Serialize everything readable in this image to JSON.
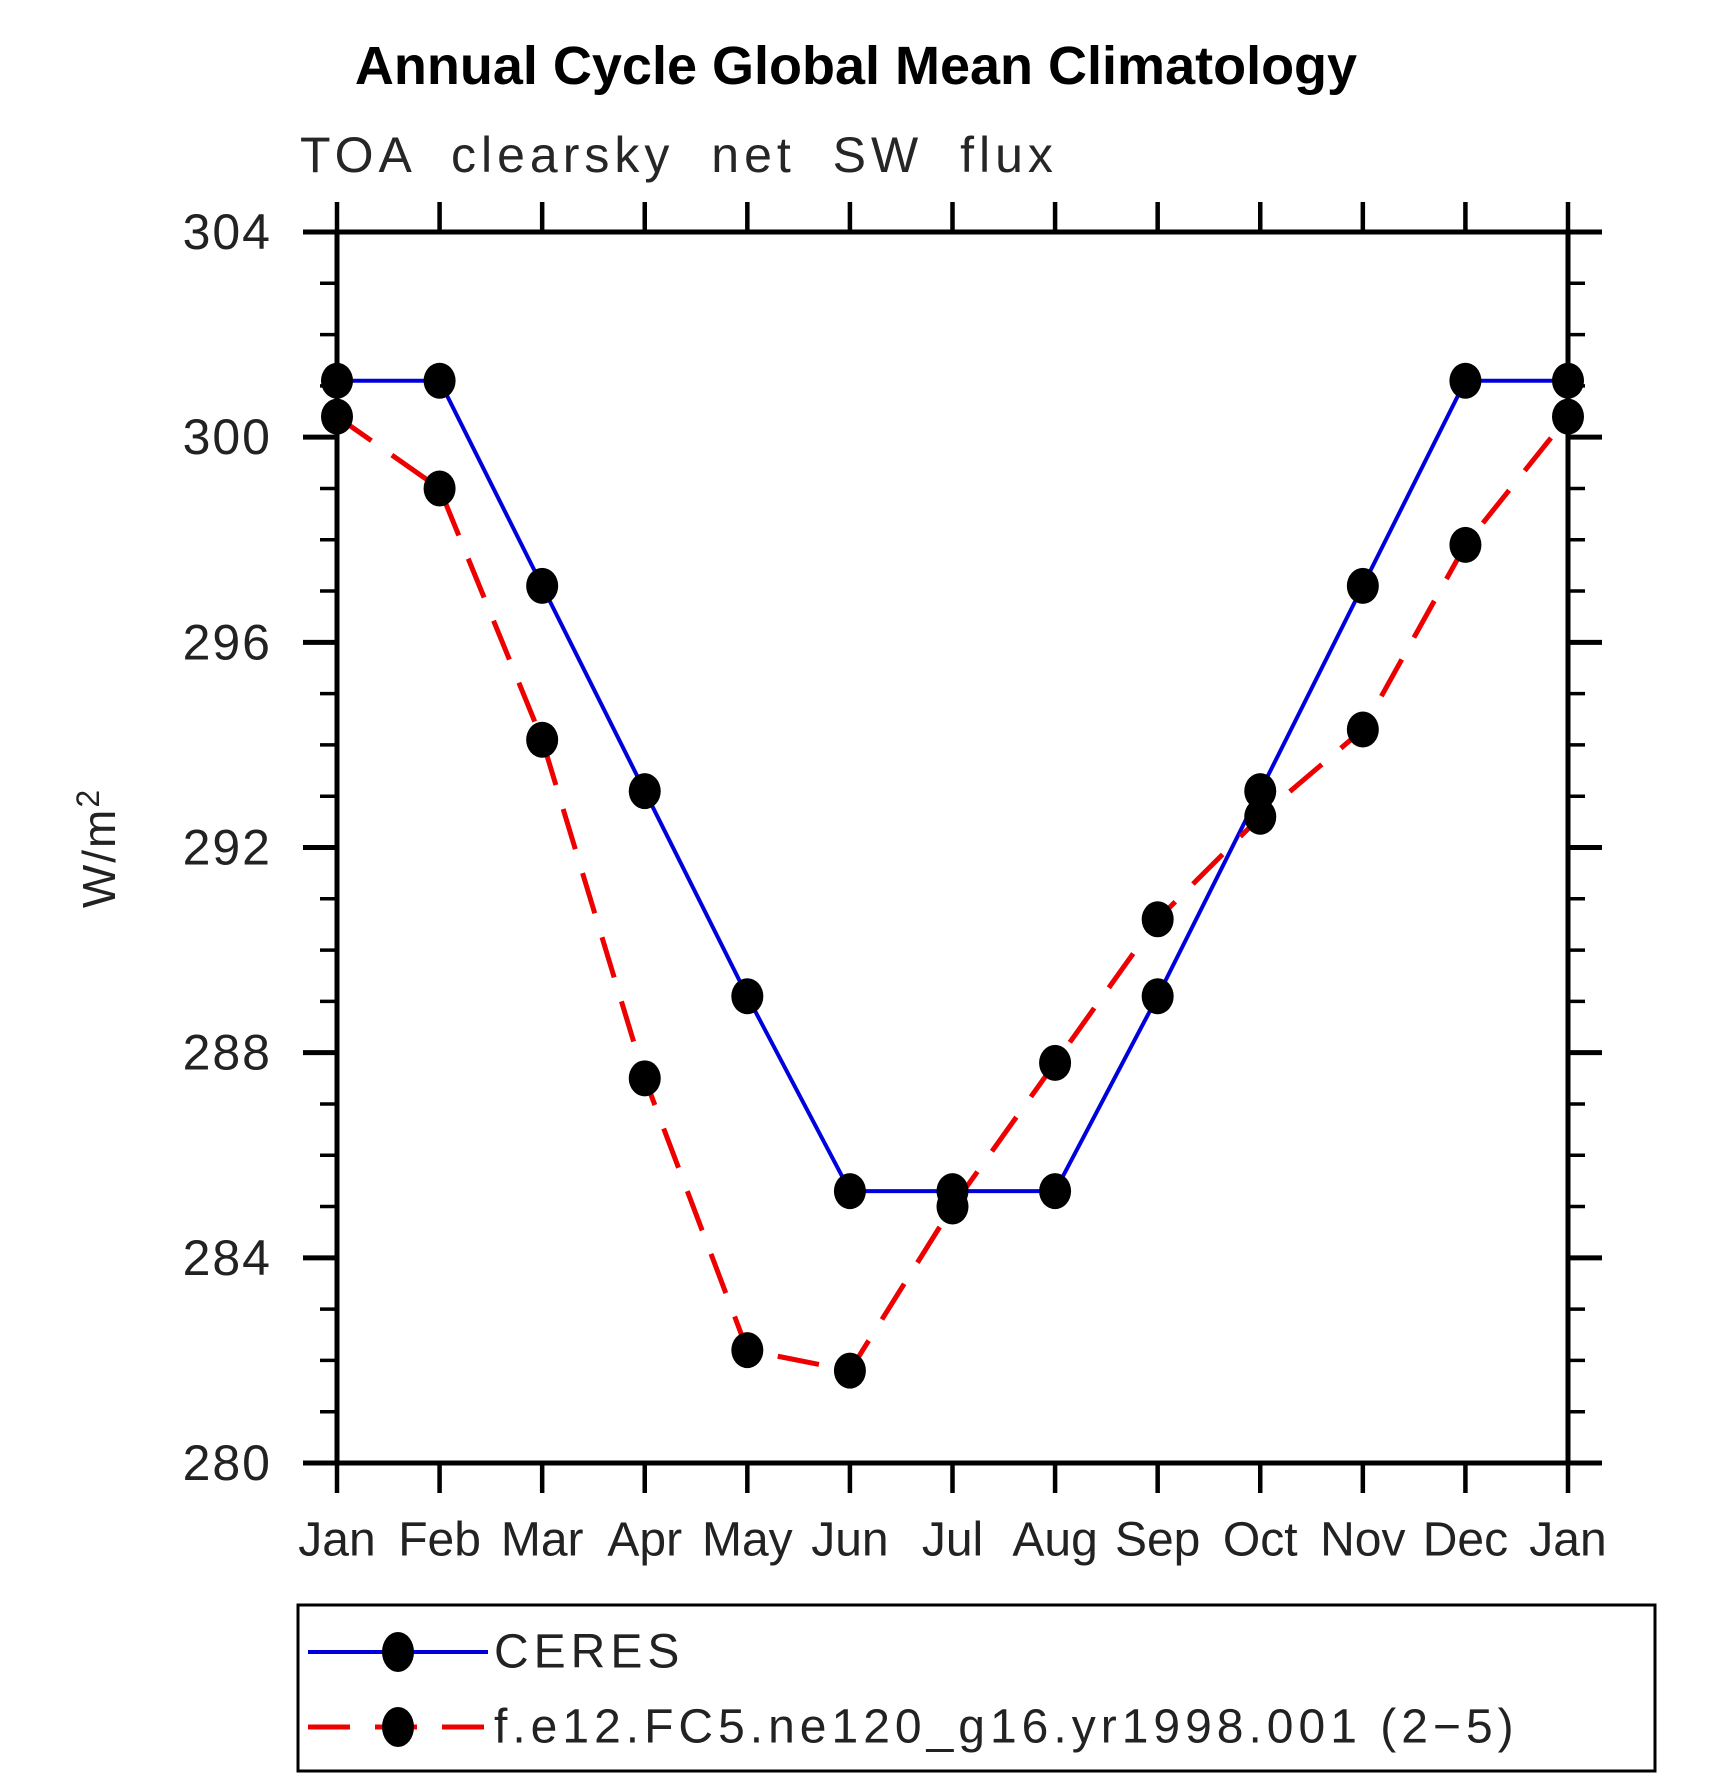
{
  "chart_data": {
    "type": "line",
    "title": "Annual Cycle Global Mean Climatology",
    "subtitle": "TOA clearsky net SW flux",
    "ylabel": "W/m²",
    "ylabel_base": "W/m",
    "ylabel_exp": "2",
    "x": [
      "Jan",
      "Feb",
      "Mar",
      "Apr",
      "May",
      "Jun",
      "Jul",
      "Aug",
      "Sep",
      "Oct",
      "Nov",
      "Dec",
      "Jan"
    ],
    "series": [
      {
        "name": "CERES",
        "color": "#0000dd",
        "line_style": "solid",
        "marker": "filled-circle",
        "marker_color": "#000000",
        "values": [
          301.1,
          301.1,
          297.1,
          293.1,
          289.1,
          285.3,
          285.3,
          285.3,
          289.1,
          293.1,
          297.1,
          301.1,
          301.1
        ]
      },
      {
        "name": "f.e12.FC5.ne120_g16.yr1998.001 (2−5)",
        "color": "#ee0000",
        "line_style": "dashed",
        "marker": "filled-circle",
        "marker_color": "#000000",
        "values": [
          300.4,
          299.0,
          294.1,
          287.5,
          282.2,
          281.8,
          285.0,
          287.8,
          290.6,
          292.6,
          294.3,
          297.9,
          300.4
        ]
      }
    ],
    "ylim": [
      280,
      304
    ],
    "y_major_ticks": [
      280,
      284,
      288,
      292,
      296,
      300,
      304
    ],
    "y_minor_step": 1,
    "grid": false,
    "legend_position": "bottom"
  }
}
